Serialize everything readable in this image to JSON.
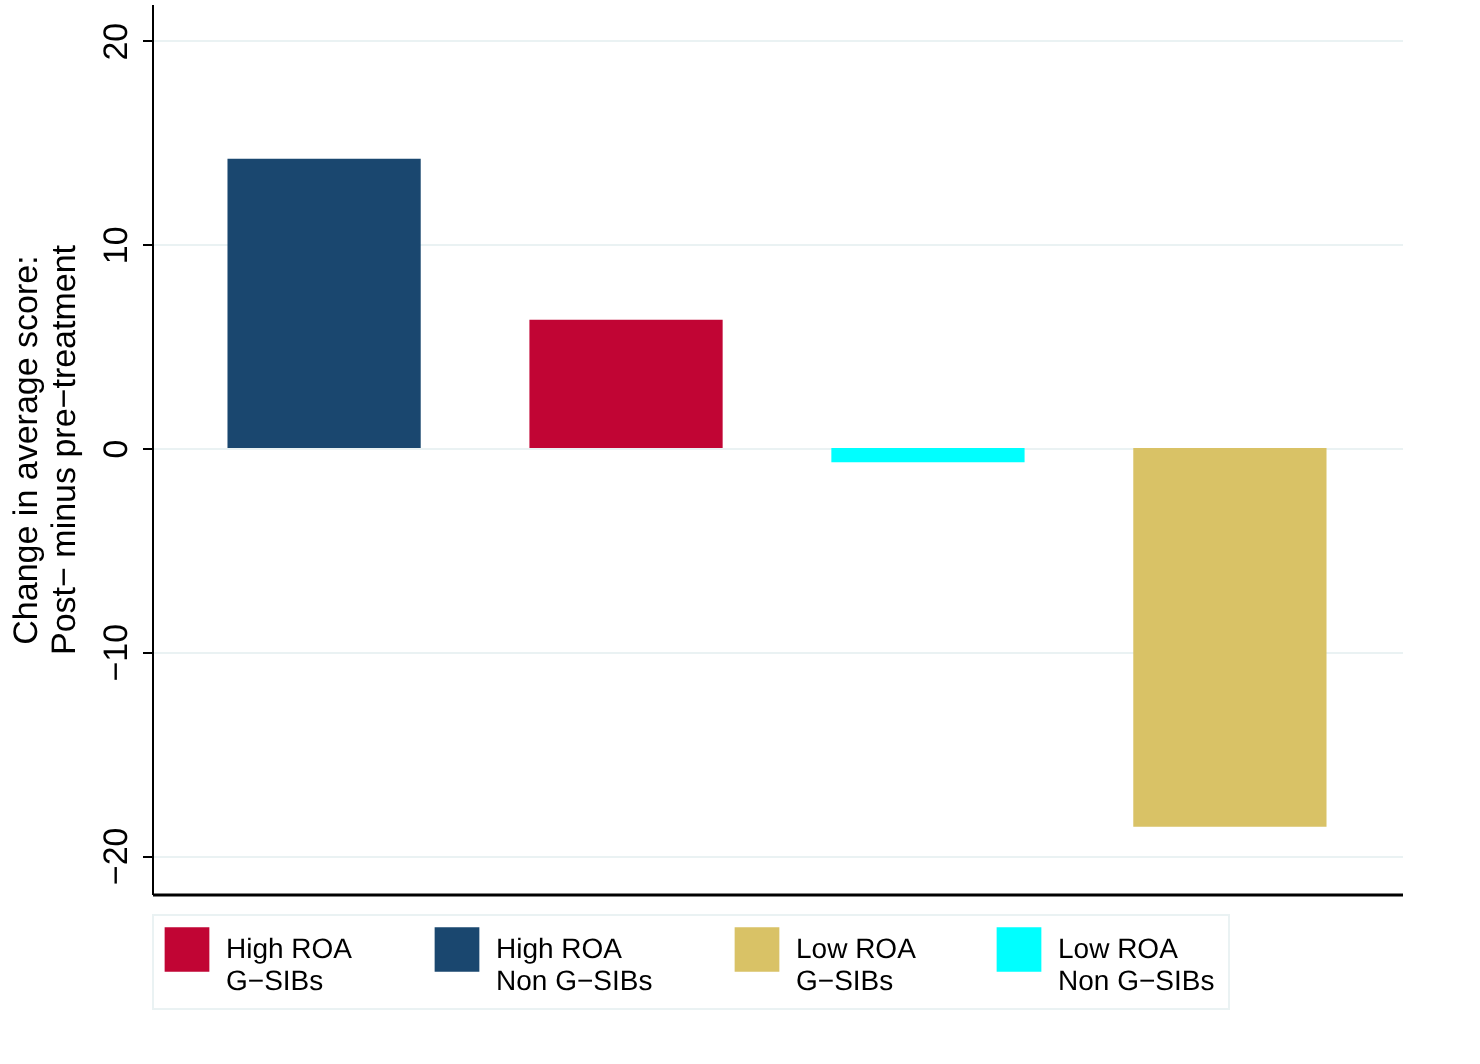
{
  "chart_data": {
    "type": "bar",
    "ylabel": "Change in average score:\nPost− minus pre−treatment",
    "categories": [
      null,
      null,
      null,
      null
    ],
    "series": [
      {
        "name": "High ROA\nG−SIBs",
        "color": "#c10534",
        "values": [
          null,
          6.3,
          null,
          null
        ]
      },
      {
        "name": "High ROA\nNon G−SIBs",
        "color": "#1a476f",
        "values": [
          14.2,
          null,
          null,
          null
        ]
      },
      {
        "name": "Low ROA\nG−SIBs",
        "color": "#d9c266",
        "values": [
          null,
          null,
          null,
          -18.6
        ]
      },
      {
        "name": "Low ROA\nNon G−SIBs",
        "color": "#00ffff",
        "values": [
          null,
          null,
          -0.7,
          null
        ]
      }
    ],
    "ylim": [
      -21.9,
      21.8
    ],
    "yticks": [
      -20,
      -10,
      0,
      10,
      20
    ],
    "grid": "y",
    "legend": "bottom",
    "tick_labels": "y"
  }
}
